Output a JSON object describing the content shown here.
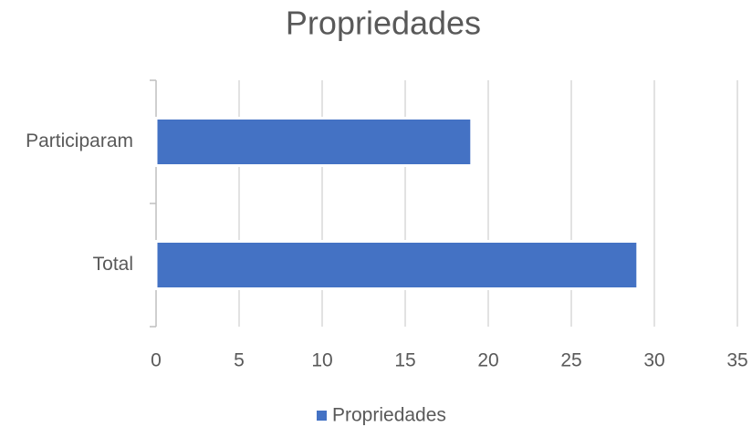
{
  "chart_data": {
    "type": "bar",
    "orientation": "horizontal",
    "title": "Propriedades",
    "categories": [
      "Participaram",
      "Total"
    ],
    "series": [
      {
        "name": "Propriedades",
        "color": "#4472c4",
        "values": [
          19,
          29
        ]
      }
    ],
    "xlim": [
      0,
      35
    ],
    "xticks": [
      0,
      5,
      10,
      15,
      20,
      25,
      30,
      35
    ],
    "grid": true,
    "legend": "bottom"
  }
}
